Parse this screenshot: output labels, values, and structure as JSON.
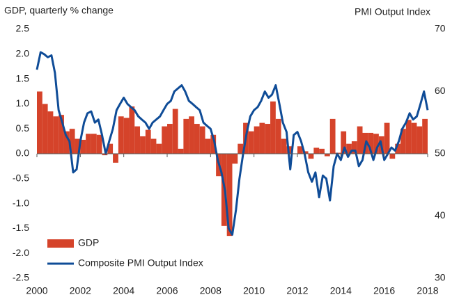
{
  "chart_data": {
    "type": "combo",
    "y_label": "GDP, quarterly % change",
    "y2_label": "PMI Output Index",
    "xlim": [
      2000,
      2018
    ],
    "xticks": [
      2000,
      2002,
      2004,
      2006,
      2008,
      2010,
      2012,
      2014,
      2016,
      2018
    ],
    "ylim": [
      -2.5,
      2.5
    ],
    "yticks": [
      {
        "value": 2.5,
        "label": "2.5"
      },
      {
        "value": 2,
        "label": "2.0"
      },
      {
        "value": 1.5,
        "label": "1.5"
      },
      {
        "value": 1,
        "label": "1.0"
      },
      {
        "value": 0.5,
        "label": "0.5"
      },
      {
        "value": 0,
        "label": "0.0"
      },
      {
        "value": -0.5,
        "label": "-0.5"
      },
      {
        "value": -1,
        "label": "-1.0"
      },
      {
        "value": -1.5,
        "label": "-1.5"
      },
      {
        "value": -2,
        "label": "-2.0"
      },
      {
        "value": -2.5,
        "label": "-2.5"
      }
    ],
    "y2lim": [
      30,
      70
    ],
    "y2ticks": [
      30,
      40,
      50,
      60,
      70
    ],
    "grid": false,
    "legend": "lower left",
    "series": [
      {
        "name": "GDP",
        "type": "bar",
        "color": "#d5432a",
        "x": [
          2000,
          2000.25,
          2000.5,
          2000.75,
          2001,
          2001.25,
          2001.5,
          2001.75,
          2002,
          2002.25,
          2002.5,
          2002.75,
          2003,
          2003.25,
          2003.5,
          2003.75,
          2004,
          2004.25,
          2004.5,
          2004.75,
          2005,
          2005.25,
          2005.5,
          2005.75,
          2006,
          2006.25,
          2006.5,
          2006.75,
          2007,
          2007.25,
          2007.5,
          2007.75,
          2008,
          2008.25,
          2008.5,
          2008.75,
          2009,
          2009.25,
          2009.5,
          2009.75,
          2010,
          2010.25,
          2010.5,
          2010.75,
          2011,
          2011.25,
          2011.5,
          2011.75,
          2012,
          2012.25,
          2012.5,
          2012.75,
          2013,
          2013.25,
          2013.5,
          2013.75,
          2014,
          2014.25,
          2014.5,
          2014.75,
          2015,
          2015.25,
          2015.5,
          2015.75,
          2016,
          2016.25,
          2016.5,
          2016.75,
          2017,
          2017.25,
          2017.5,
          2017.75
        ],
        "values": [
          1.25,
          1.0,
          0.85,
          0.75,
          0.78,
          0.45,
          0.5,
          0.3,
          0.28,
          0.4,
          0.4,
          0.38,
          -0.03,
          0.2,
          -0.18,
          0.75,
          0.72,
          0.95,
          0.55,
          0.35,
          0.48,
          0.3,
          0.2,
          0.55,
          0.6,
          0.9,
          0.1,
          0.7,
          0.75,
          0.6,
          0.55,
          0.3,
          0.38,
          -0.45,
          -1.45,
          -1.65,
          -0.2,
          0.2,
          0.62,
          0.45,
          0.55,
          0.62,
          0.6,
          1.05,
          0.7,
          0.3,
          0.15,
          0.0,
          0.15,
          0.05,
          -0.1,
          0.12,
          0.1,
          -0.05,
          0.7,
          0.02,
          0.45,
          0.2,
          0.25,
          0.55,
          0.42,
          0.42,
          0.4,
          0.35,
          0.62,
          -0.1,
          0.2,
          0.5,
          0.68,
          0.62,
          0.55,
          0.7
        ]
      },
      {
        "name": "Composite PMI Output Index",
        "type": "line",
        "axis": "y2",
        "color": "#0f4c97",
        "x": [
          2000,
          2000.17,
          2000.33,
          2000.5,
          2000.67,
          2000.83,
          2001,
          2001.17,
          2001.33,
          2001.5,
          2001.67,
          2001.83,
          2002,
          2002.17,
          2002.33,
          2002.5,
          2002.67,
          2002.83,
          2003,
          2003.17,
          2003.33,
          2003.5,
          2003.67,
          2003.83,
          2004,
          2004.17,
          2004.33,
          2004.5,
          2004.67,
          2004.83,
          2005,
          2005.17,
          2005.33,
          2005.5,
          2005.67,
          2005.83,
          2006,
          2006.17,
          2006.33,
          2006.5,
          2006.67,
          2006.83,
          2007,
          2007.17,
          2007.33,
          2007.5,
          2007.67,
          2007.83,
          2008,
          2008.17,
          2008.33,
          2008.5,
          2008.67,
          2008.83,
          2009,
          2009.17,
          2009.33,
          2009.5,
          2009.67,
          2009.83,
          2010,
          2010.17,
          2010.33,
          2010.5,
          2010.67,
          2010.83,
          2011,
          2011.17,
          2011.33,
          2011.5,
          2011.67,
          2011.83,
          2012,
          2012.17,
          2012.33,
          2012.5,
          2012.67,
          2012.83,
          2013,
          2013.17,
          2013.33,
          2013.5,
          2013.67,
          2013.83,
          2014,
          2014.17,
          2014.33,
          2014.5,
          2014.67,
          2014.83,
          2015,
          2015.17,
          2015.33,
          2015.5,
          2015.67,
          2015.83,
          2016,
          2016.17,
          2016.33,
          2016.5,
          2016.67,
          2016.83,
          2017,
          2017.17,
          2017.33,
          2017.5,
          2017.67,
          2017.83,
          2018
        ],
        "values": [
          63.5,
          66.3,
          66,
          65.5,
          65.8,
          63,
          57,
          55,
          53,
          52,
          47,
          47.5,
          52,
          55,
          56.5,
          56.8,
          55,
          55.5,
          53,
          50,
          52,
          54,
          57,
          58,
          59,
          58,
          57.5,
          57,
          56,
          55.5,
          55,
          54,
          55,
          55.5,
          56,
          57,
          58,
          58.5,
          60,
          60.5,
          61,
          60,
          58.5,
          58,
          57.5,
          57,
          55,
          54.5,
          54,
          52,
          49,
          47,
          44,
          38,
          37,
          41,
          46,
          50,
          53.5,
          56,
          57,
          57.5,
          58.5,
          60,
          59,
          59.5,
          61,
          58,
          55,
          53.5,
          47.5,
          53,
          53.5,
          52,
          50,
          47,
          45.5,
          47,
          43,
          46.5,
          46,
          42.5,
          48,
          50,
          49,
          51,
          49.5,
          50.5,
          50.5,
          48,
          49,
          52,
          51,
          49,
          51,
          52,
          49,
          50,
          51,
          50.5,
          52,
          54,
          55,
          56.5,
          55.5,
          56,
          58,
          60,
          57
        ]
      }
    ]
  }
}
